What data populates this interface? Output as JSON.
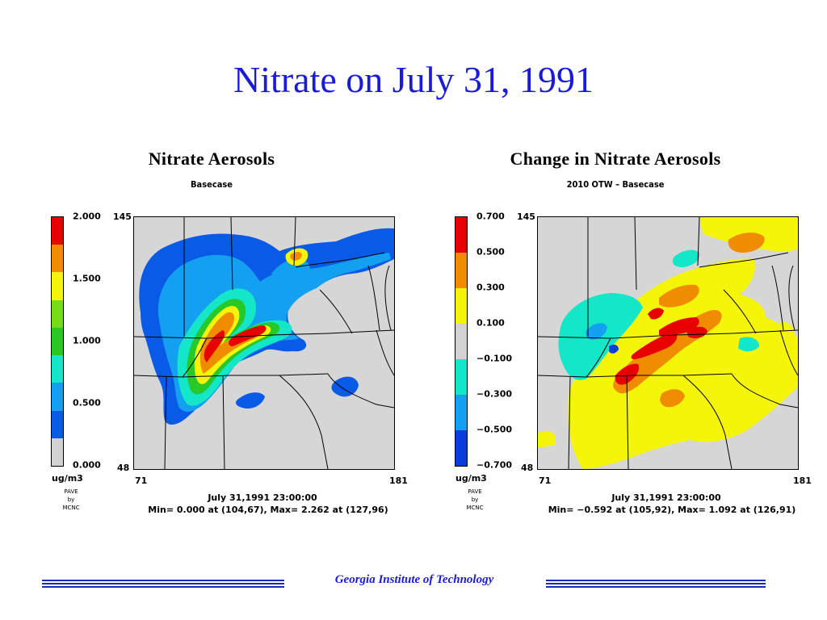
{
  "slide": {
    "title": "Nitrate on July 31, 1991",
    "footer": "Georgia Institute of Technology"
  },
  "panels": [
    {
      "title": "Nitrate Aerosols",
      "subtitle": "Basecase",
      "colorbar": {
        "labels": [
          "2.000",
          "1.500",
          "1.000",
          "0.500",
          "0.000"
        ],
        "colors": [
          "#e80000",
          "#f08c00",
          "#f5f50a",
          "#78dc14",
          "#28c828",
          "#14e6c8",
          "#14a0f0",
          "#0a5ae8",
          "#d2d2d2"
        ],
        "units": "ug/m3",
        "credit": [
          "PAVE",
          "by",
          "MCNC"
        ]
      },
      "axes": {
        "y_top": "145",
        "y_bottom": "48",
        "x_left": "71",
        "x_right": "181"
      },
      "datetime": "July 31,1991 23:00:00",
      "minmax": "Min=   0.000 at (104,67), Max=   2.262 at (127,96)"
    },
    {
      "title": "Change in Nitrate Aerosols",
      "subtitle": "2010 OTW – Basecase",
      "colorbar": {
        "labels": [
          "0.700",
          "0.500",
          "0.300",
          "0.100",
          "−0.100",
          "−0.300",
          "−0.500",
          "−0.700"
        ],
        "colors": [
          "#e80000",
          "#f08c00",
          "#f5f50a",
          "#d2d2d2",
          "#14e6c8",
          "#14a0f0",
          "#0a3ce0"
        ],
        "units": "ug/m3",
        "credit": [
          "PAVE",
          "by",
          "MCNC"
        ]
      },
      "axes": {
        "y_top": "145",
        "y_bottom": "48",
        "x_left": "71",
        "x_right": "181"
      },
      "datetime": "July 31,1991 23:00:00",
      "minmax": "Min=  −0.592 at (105,92), Max=   1.092 at (126,91)"
    }
  ]
}
